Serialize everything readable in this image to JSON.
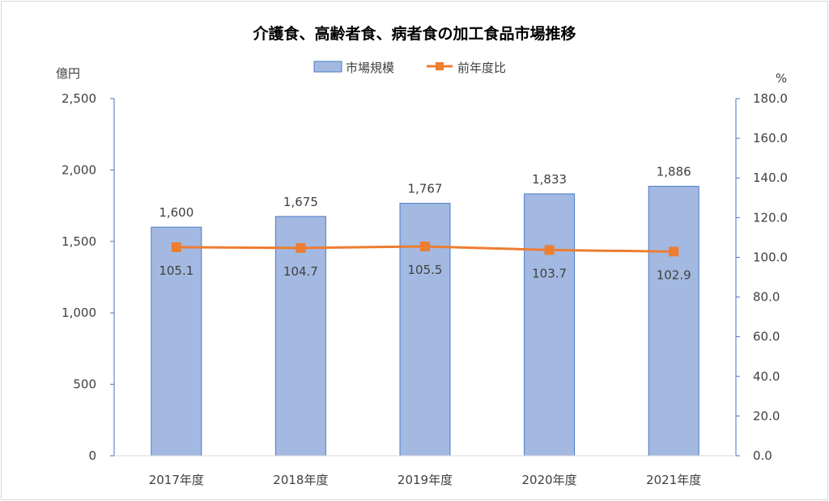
{
  "chart_data": {
    "type": "bar",
    "title": "介護食、高齢者食、病者食の加工食品市場推移",
    "categories": [
      "2017年度",
      "2018年度",
      "2019年度",
      "2020年度",
      "2021年度"
    ],
    "series": [
      {
        "name": "市場規模",
        "type": "bar",
        "axis": "left",
        "values": [
          1600,
          1675,
          1767,
          1833,
          1886
        ],
        "labels": [
          "1,600",
          "1,675",
          "1,767",
          "1,833",
          "1,886"
        ]
      },
      {
        "name": "前年度比",
        "type": "line",
        "axis": "right",
        "values": [
          105.1,
          104.7,
          105.5,
          103.7,
          102.9
        ],
        "labels": [
          "105.1",
          "104.7",
          "105.5",
          "103.7",
          "102.9"
        ]
      }
    ],
    "y_left": {
      "unit": "億円",
      "ylim": [
        0,
        2500
      ],
      "ticks": [
        0,
        500,
        1000,
        1500,
        2000,
        2500
      ],
      "tick_labels": [
        "0",
        "500",
        "1,000",
        "1,500",
        "2,000",
        "2,500"
      ]
    },
    "y_right": {
      "unit": "%",
      "ylim": [
        0,
        180
      ],
      "ticks": [
        0,
        20,
        40,
        60,
        80,
        100,
        120,
        140,
        160,
        180
      ],
      "tick_labels": [
        "0.0",
        "20.0",
        "40.0",
        "60.0",
        "80.0",
        "100.0",
        "120.0",
        "140.0",
        "160.0",
        "180.0"
      ]
    },
    "legend": {
      "position": "top"
    },
    "grid": false,
    "colors": {
      "bar_fill": "#a3b9e1",
      "bar_stroke": "#4a7bc4",
      "line": "#ed7d31",
      "axis": "#4472c4"
    }
  }
}
